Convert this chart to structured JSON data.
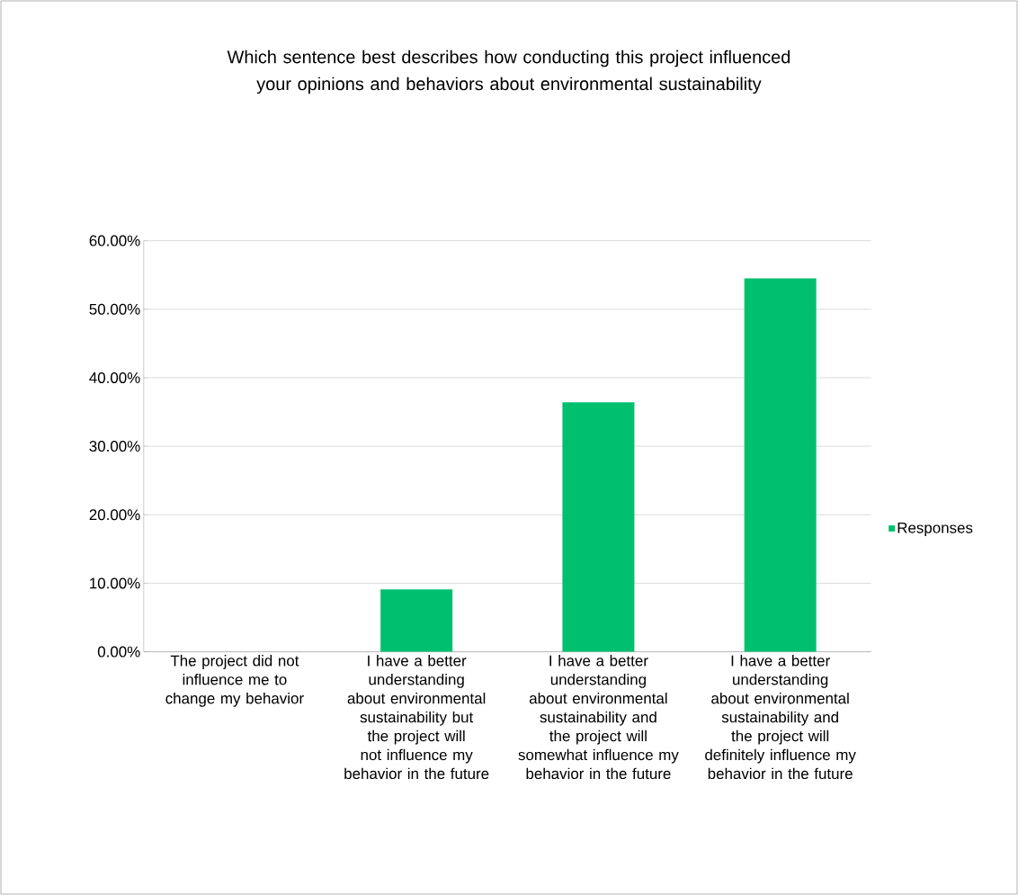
{
  "chart_data": {
    "type": "bar",
    "title": "Which sentence best describes how conducting this project influenced your opinions and behaviors about environmental sustainability",
    "categories": [
      "The project did not influence me to change my behavior",
      "I have a better understanding about environmental sustainability but the project will not influence my behavior in the future",
      "I have a better understanding about environmental sustainability and the project will somewhat influence my behavior in the future",
      "I have a better understanding about environmental sustainability and the project will definitely influence my behavior in the future"
    ],
    "series": [
      {
        "name": "Responses",
        "color": "#00c06f",
        "values": [
          0,
          9.1,
          36.4,
          54.5
        ]
      }
    ],
    "ylim": [
      0,
      60
    ],
    "yticks": [
      {
        "value": 0,
        "label": "0.00%"
      },
      {
        "value": 10,
        "label": "10.00%"
      },
      {
        "value": 20,
        "label": "20.00%"
      },
      {
        "value": 30,
        "label": "30.00%"
      },
      {
        "value": 40,
        "label": "40.00%"
      },
      {
        "value": 50,
        "label": "50.00%"
      },
      {
        "value": 60,
        "label": "60.00%"
      }
    ],
    "grid": "y",
    "legend": "right"
  }
}
